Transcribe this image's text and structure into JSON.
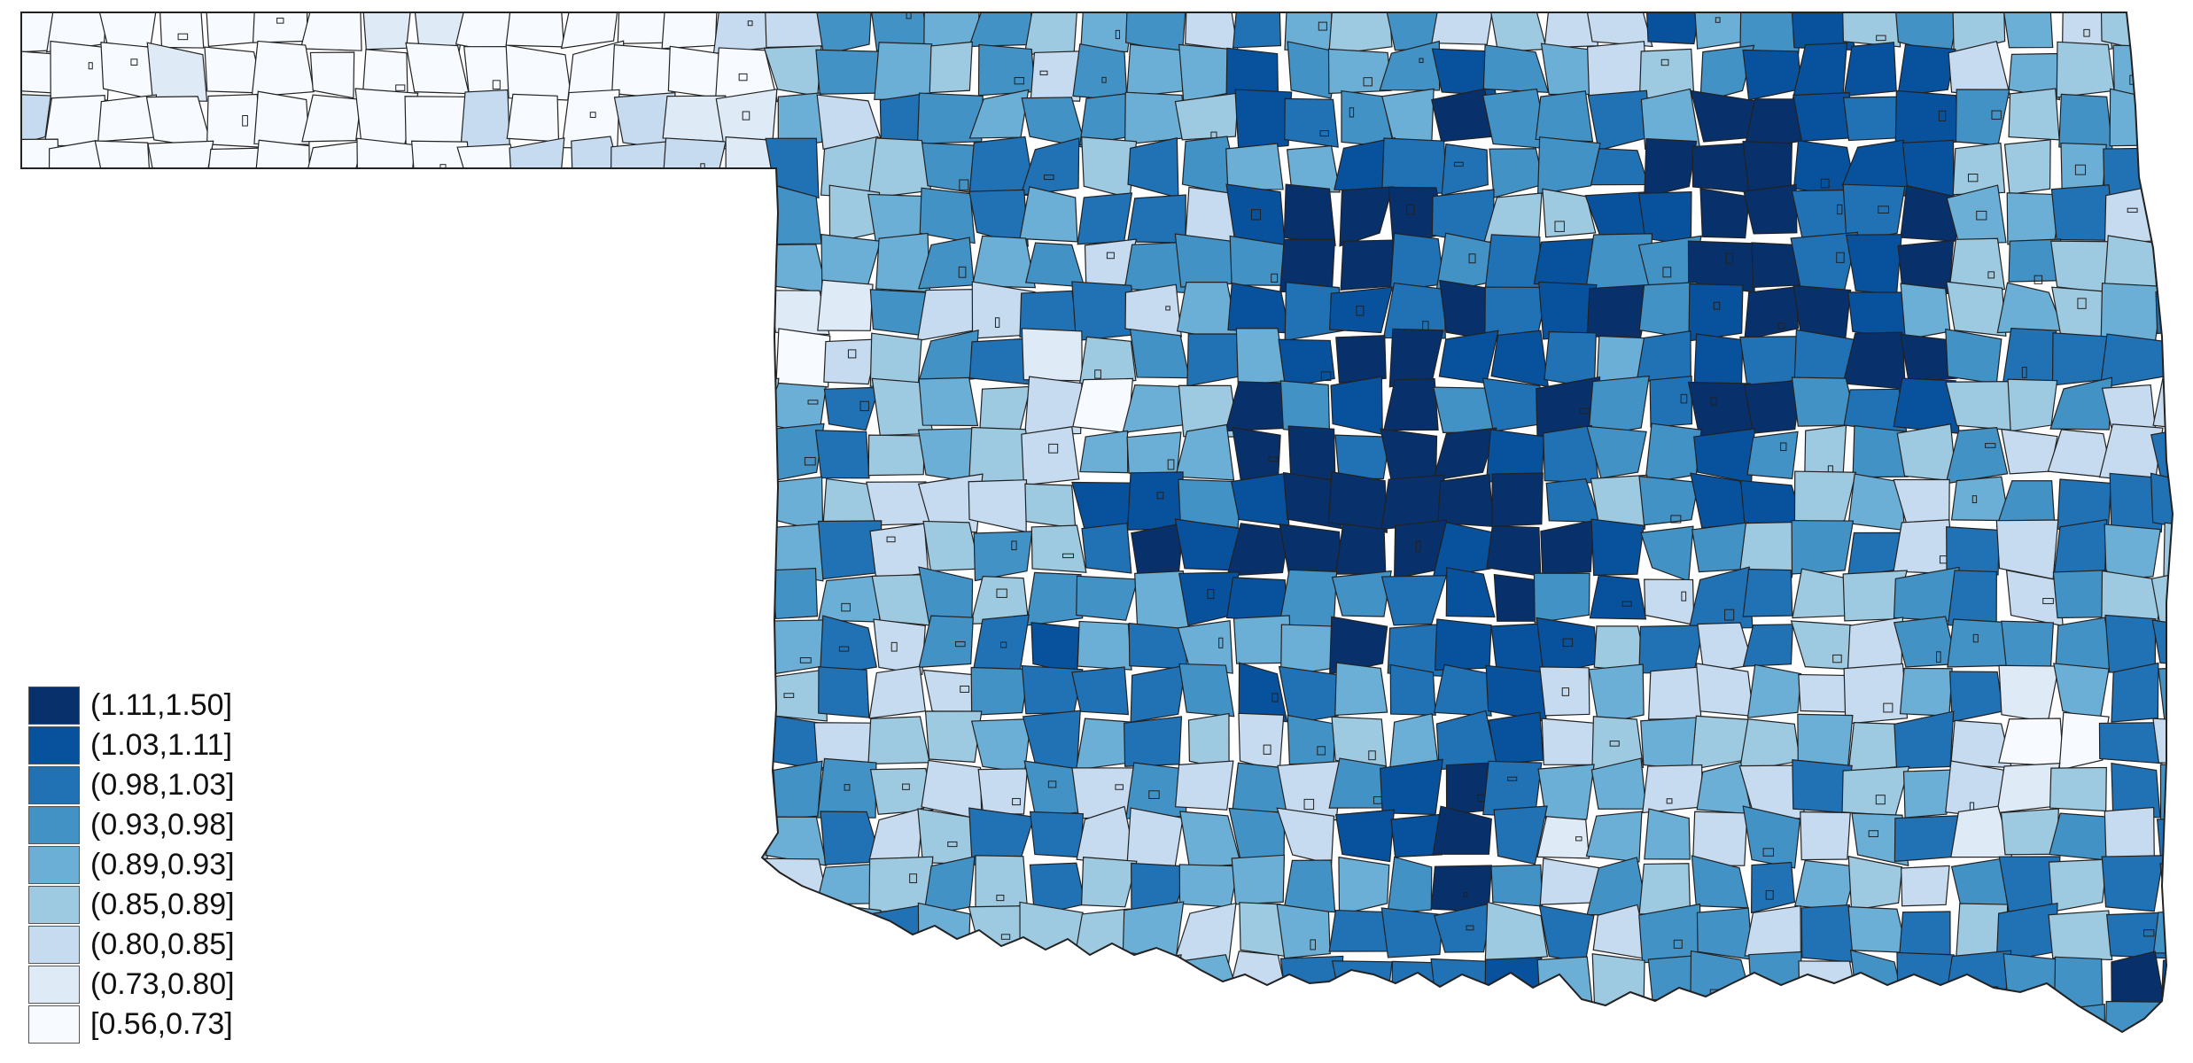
{
  "map": {
    "region": "Oklahoma",
    "unit": "school districts",
    "palette": [
      "#08306b",
      "#08519c",
      "#2171b5",
      "#4292c6",
      "#6baed6",
      "#9ecae1",
      "#c6dbef",
      "#deebf7",
      "#f7fbff"
    ],
    "border_color": "#222222"
  },
  "legend": {
    "items": [
      {
        "label": "(1.11,1.50]",
        "color": "#08306b"
      },
      {
        "label": "(1.03,1.11]",
        "color": "#08519c"
      },
      {
        "label": "(0.98,1.03]",
        "color": "#2171b5"
      },
      {
        "label": "(0.93,0.98]",
        "color": "#4292c6"
      },
      {
        "label": "(0.89,0.93]",
        "color": "#6baed6"
      },
      {
        "label": "(0.85,0.89]",
        "color": "#9ecae1"
      },
      {
        "label": "(0.80,0.85]",
        "color": "#c6dbef"
      },
      {
        "label": "(0.73,0.80]",
        "color": "#deebf7"
      },
      {
        "label": "[0.56,0.73]",
        "color": "#f7fbff"
      }
    ]
  }
}
